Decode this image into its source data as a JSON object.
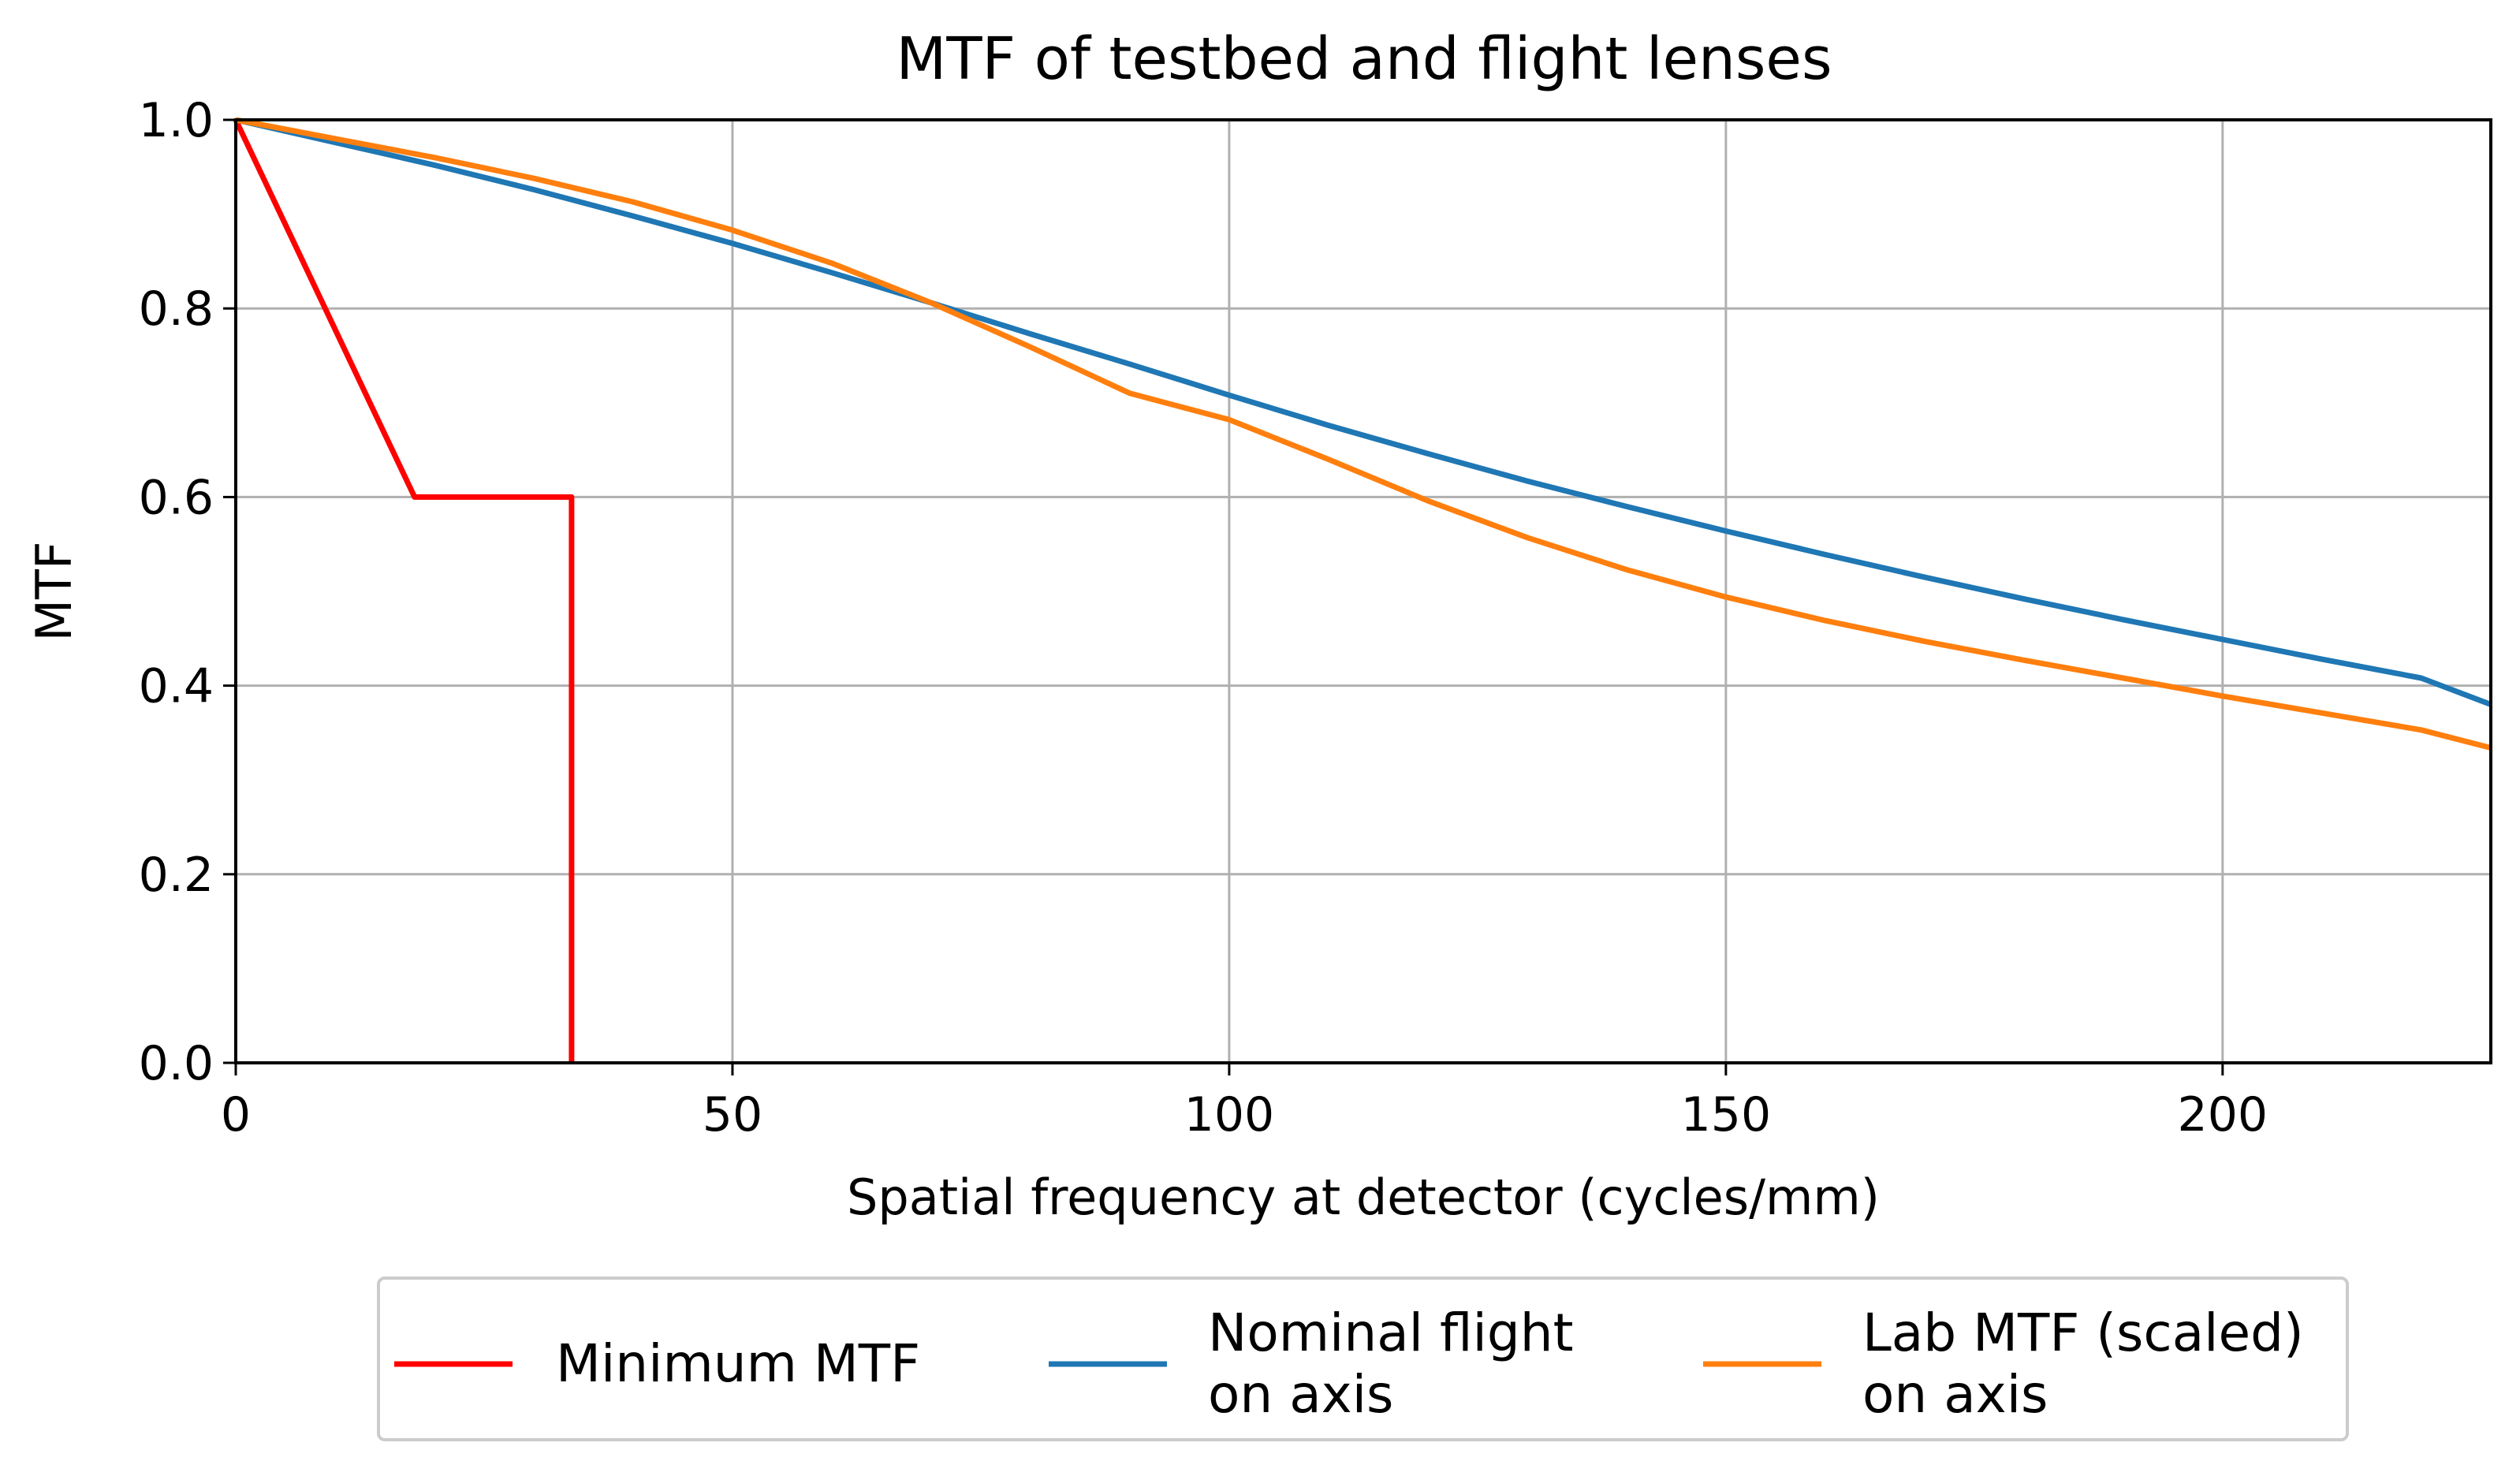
{
  "chart_data": {
    "type": "line",
    "title": "MTF of testbed and flight lenses",
    "xlabel": "Spatial frequency at detector (cycles/mm)",
    "ylabel": "MTF",
    "xlim": [
      0,
      227
    ],
    "ylim": [
      0.0,
      1.0
    ],
    "grid": true,
    "legend_position": "below",
    "xticks": [
      0,
      50,
      100,
      150,
      200
    ],
    "xtick_labels": [
      "0",
      "50",
      "100",
      "150",
      "200"
    ],
    "yticks": [
      0.0,
      0.2,
      0.4,
      0.6,
      0.8,
      1.0
    ],
    "ytick_labels": [
      "0.0",
      "0.2",
      "0.4",
      "0.6",
      "0.8",
      "1.0"
    ],
    "series": [
      {
        "name": "Minimum MTF",
        "label_lines": [
          "Minimum MTF"
        ],
        "color": "#ff0000",
        "x": [
          0,
          18,
          33.8,
          33.8
        ],
        "y": [
          1.0,
          0.6,
          0.6,
          0.0
        ]
      },
      {
        "name": "Nominal flight on axis",
        "label_lines": [
          "Nominal flight",
          "on axis"
        ],
        "color": "#1f77b4",
        "x": [
          0,
          10,
          20,
          30,
          40,
          50,
          60,
          70,
          80,
          90,
          100,
          110,
          120,
          130,
          140,
          150,
          160,
          170,
          180,
          190,
          200,
          210,
          220,
          227
        ],
        "y": [
          1.0,
          0.976,
          0.952,
          0.926,
          0.898,
          0.869,
          0.838,
          0.806,
          0.773,
          0.741,
          0.708,
          0.676,
          0.646,
          0.617,
          0.59,
          0.564,
          0.539,
          0.515,
          0.492,
          0.47,
          0.449,
          0.428,
          0.408,
          0.38
        ]
      },
      {
        "name": "Lab MTF (scaled) on axis",
        "label_lines": [
          "Lab MTF (scaled)",
          "on axis"
        ],
        "color": "#ff7f0e",
        "x": [
          0,
          10,
          20,
          30,
          40,
          50,
          60,
          70,
          80,
          90,
          100,
          110,
          120,
          130,
          140,
          150,
          160,
          170,
          180,
          190,
          200,
          210,
          220,
          227
        ],
        "y": [
          1.0,
          0.98,
          0.96,
          0.938,
          0.913,
          0.883,
          0.848,
          0.806,
          0.759,
          0.71,
          0.682,
          0.64,
          0.596,
          0.557,
          0.523,
          0.494,
          0.469,
          0.447,
          0.427,
          0.408,
          0.389,
          0.371,
          0.353,
          0.334
        ]
      }
    ]
  }
}
